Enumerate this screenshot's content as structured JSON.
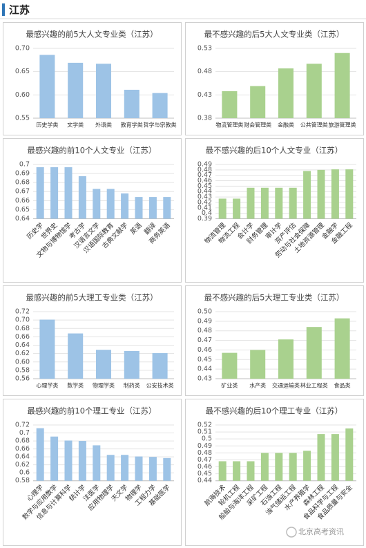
{
  "header": {
    "title": "江苏"
  },
  "watermark": "北京高考资讯",
  "chart_data": [
    {
      "type": "bar",
      "title": "最感兴趣的前5大人文专业类（江苏）",
      "color": "#9dc3e6",
      "grid": true,
      "categories": [
        "历史学类",
        "文学类",
        "外语类",
        "教育学类",
        "哲学与宗教类"
      ],
      "values": [
        0.686,
        0.669,
        0.667,
        0.611,
        0.604
      ],
      "ylim": [
        0.55,
        0.7
      ],
      "yticks": [
        0.55,
        {
          "value": 0.6,
          "label": "0.60"
        },
        0.65,
        {
          "value": 0.7,
          "label": "0.70"
        }
      ]
    },
    {
      "type": "bar",
      "title": "最不感兴趣的后5大人文专业类（江苏）",
      "color": "#a9d18e",
      "grid": true,
      "categories": [
        "物流管理类",
        "财会管理类",
        "金融类",
        "公共管理类",
        "旅游管理类"
      ],
      "values": [
        0.438,
        0.449,
        0.487,
        0.497,
        0.52
      ],
      "ylim": [
        0.38,
        0.53
      ],
      "yticks": [
        0.38,
        0.43,
        0.48,
        0.53
      ]
    },
    {
      "type": "bar",
      "title": "最感兴趣的前10个人文专业（江苏）",
      "color": "#9dc3e6",
      "grid": true,
      "categories": [
        "历史学",
        "世界史",
        "文物与博物馆学",
        "考古学",
        "汉语言文学",
        "汉语国际教育",
        "古典文献学",
        "英语",
        "翻译",
        "商务英语"
      ],
      "values": [
        0.697,
        0.697,
        0.697,
        0.687,
        0.673,
        0.673,
        0.668,
        0.664,
        0.664,
        0.664
      ],
      "ylim": [
        0.64,
        0.7
      ],
      "yticks": [
        0.64,
        0.65,
        0.66,
        0.67,
        0.68,
        0.69,
        0.7
      ]
    },
    {
      "type": "bar",
      "title": "最不感兴趣的后10个人文专业（江苏）",
      "color": "#a9d18e",
      "grid": true,
      "categories": [
        "物流管理",
        "物流工程",
        "会计学",
        "财务管理",
        "审计学",
        "资产评估",
        "劳动与社会保障",
        "土地资源管理",
        "金融学",
        "金融工程"
      ],
      "values": [
        0.427,
        0.427,
        0.447,
        0.447,
        0.447,
        0.447,
        0.478,
        0.48,
        0.481,
        0.481
      ],
      "ylim": [
        0.39,
        0.49
      ],
      "yticks": [
        0.39,
        0.4,
        0.41,
        0.42,
        0.43,
        0.44,
        0.45,
        0.46,
        0.47,
        0.48,
        0.49
      ]
    },
    {
      "type": "bar",
      "title": "最感兴趣的前5大理工专业类（江苏）",
      "color": "#9dc3e6",
      "grid": true,
      "categories": [
        "心理学类",
        "数学类",
        "物理学类",
        "制药类",
        "公安技术类"
      ],
      "values": [
        0.701,
        0.668,
        0.629,
        0.626,
        0.621
      ],
      "ylim": [
        0.56,
        0.72
      ],
      "yticks": [
        0.56,
        0.58,
        {
          "value": 0.6,
          "label": "0.60"
        },
        0.62,
        0.64,
        0.66,
        0.68,
        {
          "value": 0.7,
          "label": "0.70"
        },
        0.72
      ]
    },
    {
      "type": "bar",
      "title": "最不感兴趣的后5大理工专业类（江苏）",
      "color": "#a9d18e",
      "grid": true,
      "categories": [
        "矿业类",
        "水产类",
        "交通运输类",
        "林业工程类",
        "食品类"
      ],
      "values": [
        0.457,
        0.46,
        0.471,
        0.484,
        0.493
      ],
      "ylim": [
        0.43,
        0.5
      ],
      "yticks": [
        0.43,
        0.44,
        0.45,
        0.46,
        0.47,
        0.48,
        0.49,
        {
          "value": 0.5,
          "label": "0.50"
        }
      ]
    },
    {
      "type": "bar",
      "title": "最感兴趣的前10个理工专业（江苏）",
      "color": "#9dc3e6",
      "grid": true,
      "categories": [
        "心理学",
        "数学与应用数学",
        "信息与计算科学",
        "统计学",
        "法医学",
        "应用物理学",
        "天文学",
        "物理学",
        "工程力学",
        "基础医学"
      ],
      "values": [
        0.712,
        0.691,
        0.681,
        0.68,
        0.669,
        0.645,
        0.645,
        0.641,
        0.64,
        0.637
      ],
      "ylim": [
        0.58,
        0.72
      ],
      "yticks": [
        0.58,
        0.6,
        0.62,
        0.64,
        0.66,
        0.68,
        0.7,
        0.72
      ]
    },
    {
      "type": "bar",
      "title": "最不感兴趣的后10个理工专业（江苏）",
      "color": "#a9d18e",
      "grid": true,
      "categories": [
        "航海技术",
        "轮机工程",
        "船舶与海洋工程",
        "采矿工程",
        "石油工程",
        "油气储运工程",
        "水产养殖学",
        "森林工程",
        "食品科学与工程",
        "食品质量与安全"
      ],
      "values": [
        0.468,
        0.468,
        0.468,
        0.48,
        0.48,
        0.48,
        0.483,
        0.507,
        0.507,
        0.515
      ],
      "ylim": [
        0.44,
        0.52
      ],
      "yticks": [
        0.44,
        0.45,
        0.46,
        0.47,
        0.48,
        0.49,
        0.5,
        0.51,
        0.52
      ]
    }
  ]
}
